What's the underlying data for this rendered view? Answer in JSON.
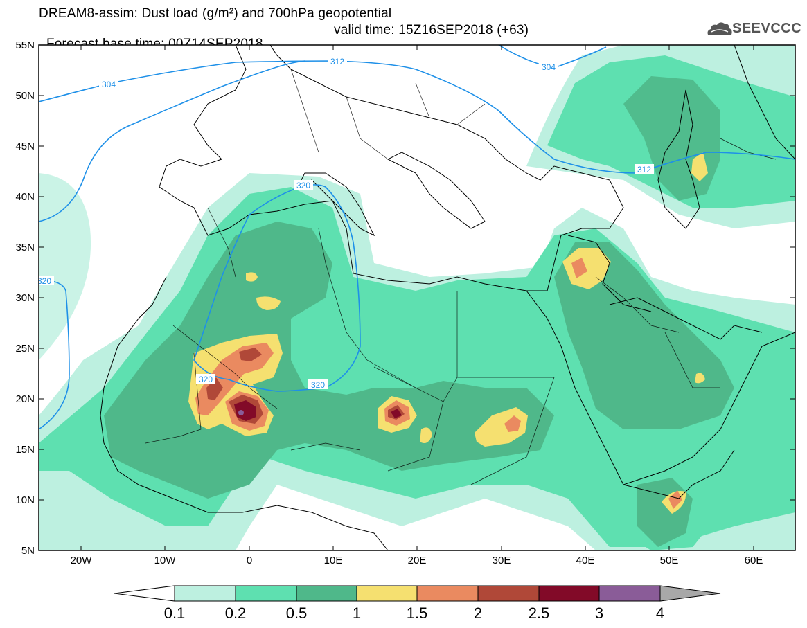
{
  "header": {
    "title_line1": "DREAM8-assim: Dust load (g/m²) and 700hPa geopotential",
    "base_time": "Forecast base time: 00Z14SEP2018",
    "valid_time": "valid time: 15Z16SEP2018 (+63)"
  },
  "logo": {
    "text": "SEEVCCC",
    "icon": "cloud-logo-icon"
  },
  "map": {
    "lat_labels": [
      "55N",
      "50N",
      "45N",
      "40N",
      "35N",
      "30N",
      "25N",
      "20N",
      "15N",
      "10N",
      "5N"
    ],
    "lon_labels": [
      "20W",
      "10W",
      "0",
      "10E",
      "20E",
      "30E",
      "40E",
      "50E",
      "60E"
    ],
    "contour_labels": [
      "304",
      "312",
      "304",
      "312",
      "320",
      "320",
      "320",
      "320"
    ],
    "colors": {
      "land_border": "#000000",
      "contour": "#1e90e8"
    }
  },
  "legend": {
    "labels": [
      "0.1",
      "0.2",
      "0.5",
      "1",
      "1.5",
      "2",
      "2.5",
      "3",
      "4"
    ],
    "colors": [
      "#bdf0e0",
      "#5ee0b0",
      "#4fb88a",
      "#f5e070",
      "#ea8a60",
      "#b04838",
      "#820a28",
      "#8a5c98",
      "#a8a8a8"
    ]
  }
}
